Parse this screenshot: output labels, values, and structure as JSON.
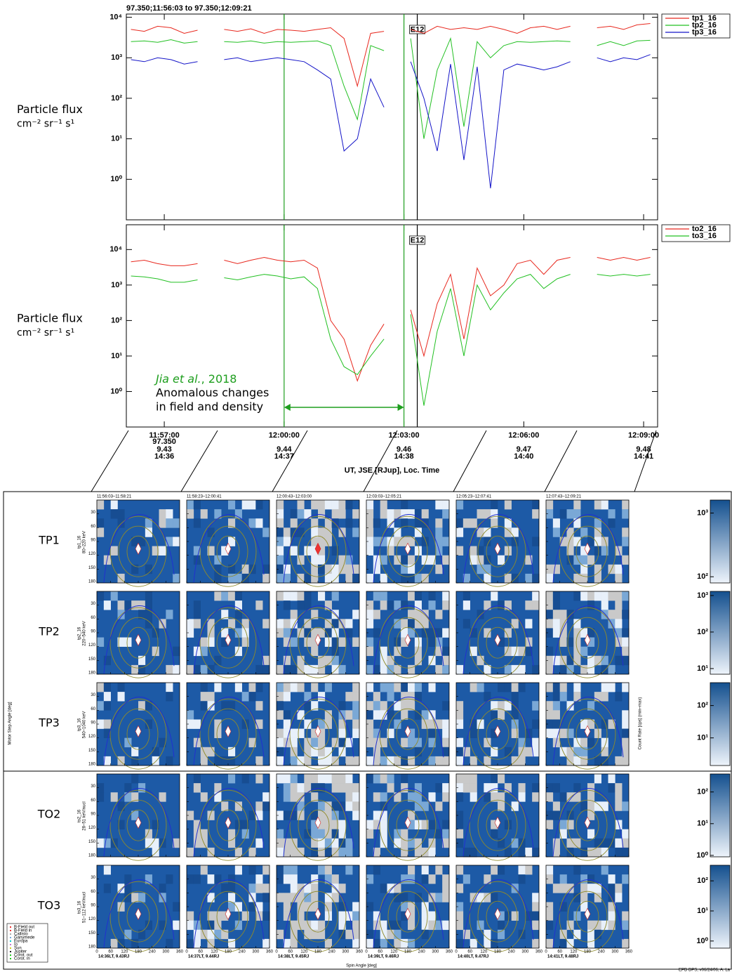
{
  "title": "97.350;11:56:03 to 97.350;12:09:21",
  "chart_data": [
    {
      "type": "line",
      "log": true,
      "ylabel": "Particle flux",
      "ylabel_units": "cm⁻² sr⁻¹ s¹",
      "xlim": [
        "11:56:03",
        "12:09:21"
      ],
      "xticks": [
        "11:57:00",
        "12:00:00",
        "12:03:00",
        "12:06:00",
        "12:09:00"
      ],
      "ylim": [
        0.1,
        12000
      ],
      "yticks": [
        {
          "value": 1,
          "label": "10⁰"
        },
        {
          "value": 10,
          "label": "10¹"
        },
        {
          "value": 100,
          "label": "10²"
        },
        {
          "value": 1000,
          "label": "10³"
        },
        {
          "value": 10000,
          "label": "10⁴"
        }
      ],
      "events": [
        {
          "x": "12:00:00",
          "color": "#1e9e1e"
        },
        {
          "x": "12:03:00",
          "color": "#1e9e1e"
        },
        {
          "x": "12:03:20",
          "color": "#000000",
          "label": "E12"
        }
      ],
      "x": [
        "11:56:10",
        "11:56:30",
        "11:56:50",
        "11:57:10",
        "11:57:30",
        "11:57:50",
        "11:58:10",
        "11:58:30",
        "11:58:50",
        "11:59:10",
        "11:59:30",
        "11:59:50",
        "12:00:10",
        "12:00:30",
        "12:00:50",
        "12:01:10",
        "12:01:30",
        "12:01:50",
        "12:02:10",
        "12:02:30",
        "12:02:50",
        "12:03:10",
        "12:03:30",
        "12:03:50",
        "12:04:10",
        "12:04:30",
        "12:04:50",
        "12:05:10",
        "12:05:30",
        "12:05:50",
        "12:06:10",
        "12:06:30",
        "12:06:50",
        "12:07:10",
        "12:07:30",
        "12:07:50",
        "12:08:10",
        "12:08:30",
        "12:08:50",
        "12:09:10"
      ],
      "series": [
        {
          "name": "tp1_16",
          "color": "#e8281e",
          "values": [
            5000,
            4500,
            6000,
            5500,
            4000,
            4800,
            null,
            5000,
            4500,
            5200,
            4000,
            5000,
            4800,
            4500,
            5000,
            5500,
            3000,
            200,
            4000,
            4500,
            null,
            5000,
            4000,
            6000,
            5000,
            5500,
            5000,
            6000,
            5000,
            4000,
            5500,
            6000,
            5000,
            6000,
            null,
            5500,
            6000,
            5000,
            6500,
            7000
          ]
        },
        {
          "name": "tp2_16",
          "color": "#22c022",
          "values": [
            2500,
            2600,
            2400,
            2800,
            2300,
            2500,
            null,
            2500,
            2400,
            2600,
            2300,
            2500,
            2400,
            2500,
            2600,
            2000,
            200,
            30,
            2000,
            1500,
            null,
            3000,
            10,
            500,
            3000,
            20,
            2500,
            1000,
            2000,
            2500,
            2400,
            2500,
            2600,
            2500,
            null,
            2000,
            2500,
            2000,
            2600,
            2700
          ]
        },
        {
          "name": "tp3_16",
          "color": "#1414c8",
          "values": [
            900,
            800,
            1000,
            900,
            700,
            800,
            null,
            900,
            1000,
            800,
            900,
            1000,
            900,
            800,
            500,
            300,
            5,
            10,
            300,
            60,
            null,
            800,
            100,
            5,
            700,
            3,
            600,
            0.6,
            500,
            700,
            600,
            500,
            600,
            800,
            null,
            1000,
            800,
            1000,
            900,
            1200
          ]
        }
      ]
    },
    {
      "type": "line",
      "log": true,
      "ylabel": "Particle flux",
      "ylabel_units": "cm⁻² sr⁻¹ s¹",
      "xlabel": "UT, JSE [RJup], Loc. Time",
      "xdate": "97.350",
      "xlim": [
        "11:56:03",
        "12:09:21"
      ],
      "xticks": [
        "11:57:00",
        "12:00:00",
        "12:03:00",
        "12:06:00",
        "12:09:00"
      ],
      "xtick_jse": [
        "9.43",
        "9.44",
        "9.46",
        "9.47",
        "9.48"
      ],
      "xtick_loctime": [
        "14:36",
        "14:37",
        "14:38",
        "14:40",
        "14:41"
      ],
      "ylim": [
        0.1,
        50000
      ],
      "yticks": [
        {
          "value": 1,
          "label": "10⁰"
        },
        {
          "value": 10,
          "label": "10¹"
        },
        {
          "value": 100,
          "label": "10²"
        },
        {
          "value": 1000,
          "label": "10³"
        },
        {
          "value": 10000,
          "label": "10⁴"
        }
      ],
      "events": [
        {
          "x": "12:00:00",
          "color": "#1e9e1e"
        },
        {
          "x": "12:03:00",
          "color": "#1e9e1e"
        },
        {
          "x": "12:03:20",
          "color": "#000000",
          "label": "E12"
        }
      ],
      "annotation": {
        "author": "Jia et al.",
        "year": ", 2018",
        "line2": "Anomalous changes",
        "line3": "in field and density",
        "color": "#1e9e1e",
        "from": "12:00:00",
        "to": "12:03:00"
      },
      "x": [
        "11:56:10",
        "11:56:30",
        "11:56:50",
        "11:57:10",
        "11:57:30",
        "11:57:50",
        "11:58:10",
        "11:58:30",
        "11:58:50",
        "11:59:10",
        "11:59:30",
        "11:59:50",
        "12:00:10",
        "12:00:30",
        "12:00:50",
        "12:01:10",
        "12:01:30",
        "12:01:50",
        "12:02:10",
        "12:02:30",
        "12:02:50",
        "12:03:10",
        "12:03:30",
        "12:03:50",
        "12:04:10",
        "12:04:30",
        "12:04:50",
        "12:05:10",
        "12:05:30",
        "12:05:50",
        "12:06:10",
        "12:06:30",
        "12:06:50",
        "12:07:10",
        "12:07:30",
        "12:07:50",
        "12:08:10",
        "12:08:30",
        "12:08:50",
        "12:09:10"
      ],
      "series": [
        {
          "name": "to2_16",
          "color": "#e8281e",
          "values": [
            4500,
            5000,
            4000,
            3500,
            3500,
            4000,
            null,
            5000,
            4000,
            5000,
            6000,
            5000,
            4500,
            5000,
            3000,
            100,
            30,
            2,
            20,
            80,
            null,
            200,
            10,
            300,
            2000,
            30,
            3000,
            500,
            1000,
            4000,
            5000,
            2000,
            5000,
            6000,
            null,
            6000,
            5000,
            6000,
            5000,
            6000
          ]
        },
        {
          "name": "to3_16",
          "color": "#22c022",
          "values": [
            1800,
            1700,
            1500,
            1200,
            1200,
            1400,
            null,
            1600,
            1400,
            1700,
            2000,
            1800,
            1500,
            1700,
            800,
            30,
            5,
            3,
            10,
            30,
            null,
            150,
            0.4,
            50,
            800,
            10,
            1000,
            200,
            600,
            1500,
            2000,
            800,
            1500,
            2000,
            null,
            2000,
            1800,
            2000,
            1800,
            2000
          ]
        }
      ]
    }
  ],
  "pitch_angle": {
    "columns": [
      "11:56:03–11:58:21",
      "11:58:23–12:00:41",
      "12:00:43–12:03:00",
      "12:03:03–12:05:21",
      "12:05:23–12:07:41",
      "12:07:43–12:09:21"
    ],
    "column_positions": [
      "14:36LT, 9.43RJ",
      "14:37LT, 9.44RJ",
      "14:38LT, 9.45RJ",
      "14:39LT, 9.46RJ",
      "14:40LT, 9.47RJ",
      "14:41LT, 9.48RJ"
    ],
    "xlim": [
      0,
      360
    ],
    "ylim": [
      0,
      180
    ],
    "xticks": [
      0,
      60,
      120,
      180,
      240,
      300,
      360
    ],
    "yticks": [
      30,
      60,
      90,
      120,
      150,
      180
    ],
    "ylabel": "Motor Step Angle [deg]",
    "xlabel": "Spin Angle [deg]",
    "cbar_label": "Count Rate [cps] (min–max)",
    "rows": [
      {
        "name": "TP1",
        "color": "#e84040",
        "channel": "tp1_16",
        "energy": "80–220 keV",
        "cbar": {
          "lim": [
            80,
            1600
          ],
          "ticks": [
            {
              "value": 100,
              "label": "10²"
            },
            {
              "value": 1000,
              "label": "10³"
            }
          ]
        }
      },
      {
        "name": "TP2",
        "color": "#2ec02e",
        "channel": "tp2_16",
        "energy": "220–540 keV",
        "cbar": {
          "lim": [
            7,
            1300
          ],
          "ticks": [
            {
              "value": 10,
              "label": "10¹"
            },
            {
              "value": 100,
              "label": "10²"
            },
            {
              "value": 1000,
              "label": "10³"
            }
          ]
        }
      },
      {
        "name": "TP3",
        "color": "#2a2ad0",
        "channel": "tp3_16",
        "energy": "540–1040 keV",
        "cbar": {
          "lim": [
            1.4,
            510
          ],
          "ticks": [
            {
              "value": 10,
              "label": "10¹"
            },
            {
              "value": 100,
              "label": "10²"
            }
          ]
        }
      },
      {
        "name": "TO2",
        "color": "#e84040",
        "channel": "to2_16",
        "energy": "28–51 keV/nucl",
        "cbar": {
          "lim": [
            0.9,
            370
          ],
          "ticks": [
            {
              "value": 1,
              "label": "10⁰"
            },
            {
              "value": 10,
              "label": "10¹"
            },
            {
              "value": 100,
              "label": "10²"
            }
          ]
        }
      },
      {
        "name": "TO3",
        "color": "#2ec02e",
        "channel": "to3_16",
        "energy": "51–112 keV/nucl",
        "cbar": {
          "lim": [
            0.58,
            330
          ],
          "ticks": [
            {
              "value": 1,
              "label": "10⁰"
            },
            {
              "value": 10,
              "label": "10¹"
            },
            {
              "value": 100,
              "label": "10²"
            }
          ]
        }
      }
    ],
    "legend": [
      "B-Field out",
      "B-Field in",
      "Callisto",
      "Ganymede",
      "Europa",
      "Io",
      "Sun",
      "Jupiter",
      "Corot. out",
      "Corot. in"
    ],
    "footer": "EPD DPS, v06/24/06, A. La"
  }
}
